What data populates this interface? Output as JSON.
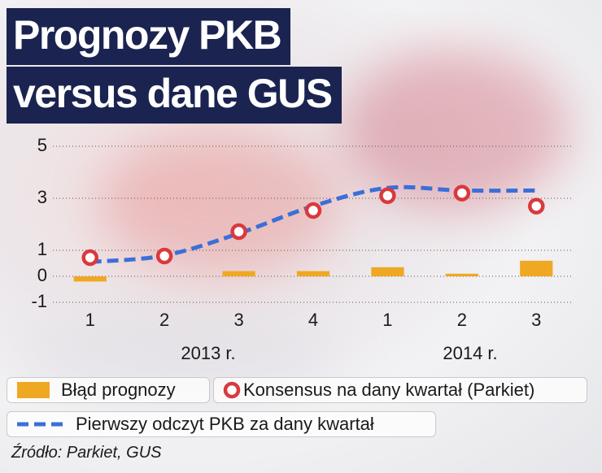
{
  "chart_data": {
    "type": "combo",
    "title": [
      "Prognozy PKB",
      "versus dane GUS"
    ],
    "categories": [
      "1",
      "2",
      "3",
      "4",
      "1",
      "2",
      "3"
    ],
    "groups": [
      "2013 r.",
      "2014 r."
    ],
    "series": [
      {
        "name": "Błąd prognozy",
        "type": "bar",
        "color": "#efa823",
        "values": [
          -0.2,
          0,
          0.2,
          0.2,
          0.35,
          0.1,
          0.6
        ]
      },
      {
        "name": "Konsensus na dany kwartał (Parkiet)",
        "type": "scatter",
        "color": "#d9393e",
        "values": [
          0.72,
          0.78,
          1.72,
          2.53,
          3.1,
          3.2,
          2.7
        ]
      },
      {
        "name": "Pierwszy odczyt PKB za dany kwartał",
        "type": "line",
        "color": "#3b6fd8",
        "values": [
          0.55,
          0.8,
          1.65,
          2.7,
          3.4,
          3.3,
          3.3
        ]
      }
    ],
    "ylim": [
      -1,
      5
    ],
    "yticks": [
      -1,
      0,
      1,
      3,
      5
    ],
    "grid": true,
    "source": "Źródło: Parkiet, GUS"
  }
}
